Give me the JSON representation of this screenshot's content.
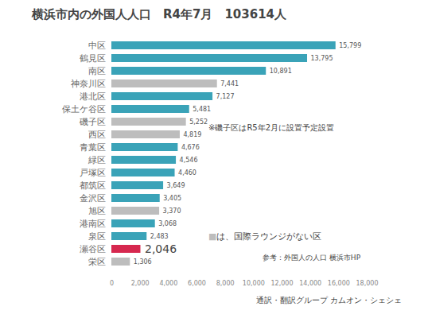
{
  "chart_data": {
    "type": "bar",
    "orientation": "horizontal",
    "title": "横浜市内の外国人人口　R4年7月　103614人",
    "categories": [
      "中区",
      "鶴見区",
      "南区",
      "神奈川区",
      "港北区",
      "保土ケ谷区",
      "磯子区",
      "西区",
      "青葉区",
      "緑区",
      "戸塚区",
      "都筑区",
      "金沢区",
      "旭区",
      "港南区",
      "泉区",
      "瀬谷区",
      "栄区"
    ],
    "values": [
      15799,
      13795,
      10891,
      7441,
      7127,
      5481,
      5252,
      4819,
      4676,
      4546,
      4460,
      3649,
      3405,
      3370,
      3068,
      2483,
      2046,
      1306
    ],
    "value_labels": [
      "15,799",
      "13,795",
      "10,891",
      "7,441",
      "7,127",
      "5,481",
      "5,252",
      "4,819",
      "4,676",
      "4,546",
      "4,460",
      "3,649",
      "3,405",
      "3,370",
      "3,068",
      "2,483",
      "2,046",
      "1,306"
    ],
    "colors": [
      "#3aa3b8",
      "#3aa3b8",
      "#3aa3b8",
      "#bdbdbd",
      "#3aa3b8",
      "#3aa3b8",
      "#bdbdbd",
      "#bdbdbd",
      "#3aa3b8",
      "#3aa3b8",
      "#3aa3b8",
      "#3aa3b8",
      "#3aa3b8",
      "#bdbdbd",
      "#3aa3b8",
      "#3aa3b8",
      "#d6284f",
      "#bdbdbd"
    ],
    "xlim": [
      0,
      18000
    ],
    "xticks": [
      0,
      {
        "value": 2000,
        "label": "2,000"
      },
      {
        "value": 4000,
        "label": "4,000"
      },
      {
        "value": 6000,
        "label": "6,000"
      },
      {
        "value": 8000,
        "label": "8,000"
      },
      {
        "value": 10000,
        "label": "10,000"
      },
      {
        "value": 12000,
        "label": "12,000"
      },
      {
        "value": 14000,
        "label": "14,000"
      },
      {
        "value": 16000,
        "label": "16,000"
      },
      {
        "value": 18000,
        "label": "18,000"
      }
    ],
    "grid": false,
    "data_labels": true,
    "annotations": [
      "※磯子区はR5年2月に設置予定設置",
      "■は、国際ラウンジがない区",
      "参考：外国人の人口  横浜市HP",
      "通訳・翻訳グループ  カムオン・シェシェ"
    ]
  }
}
